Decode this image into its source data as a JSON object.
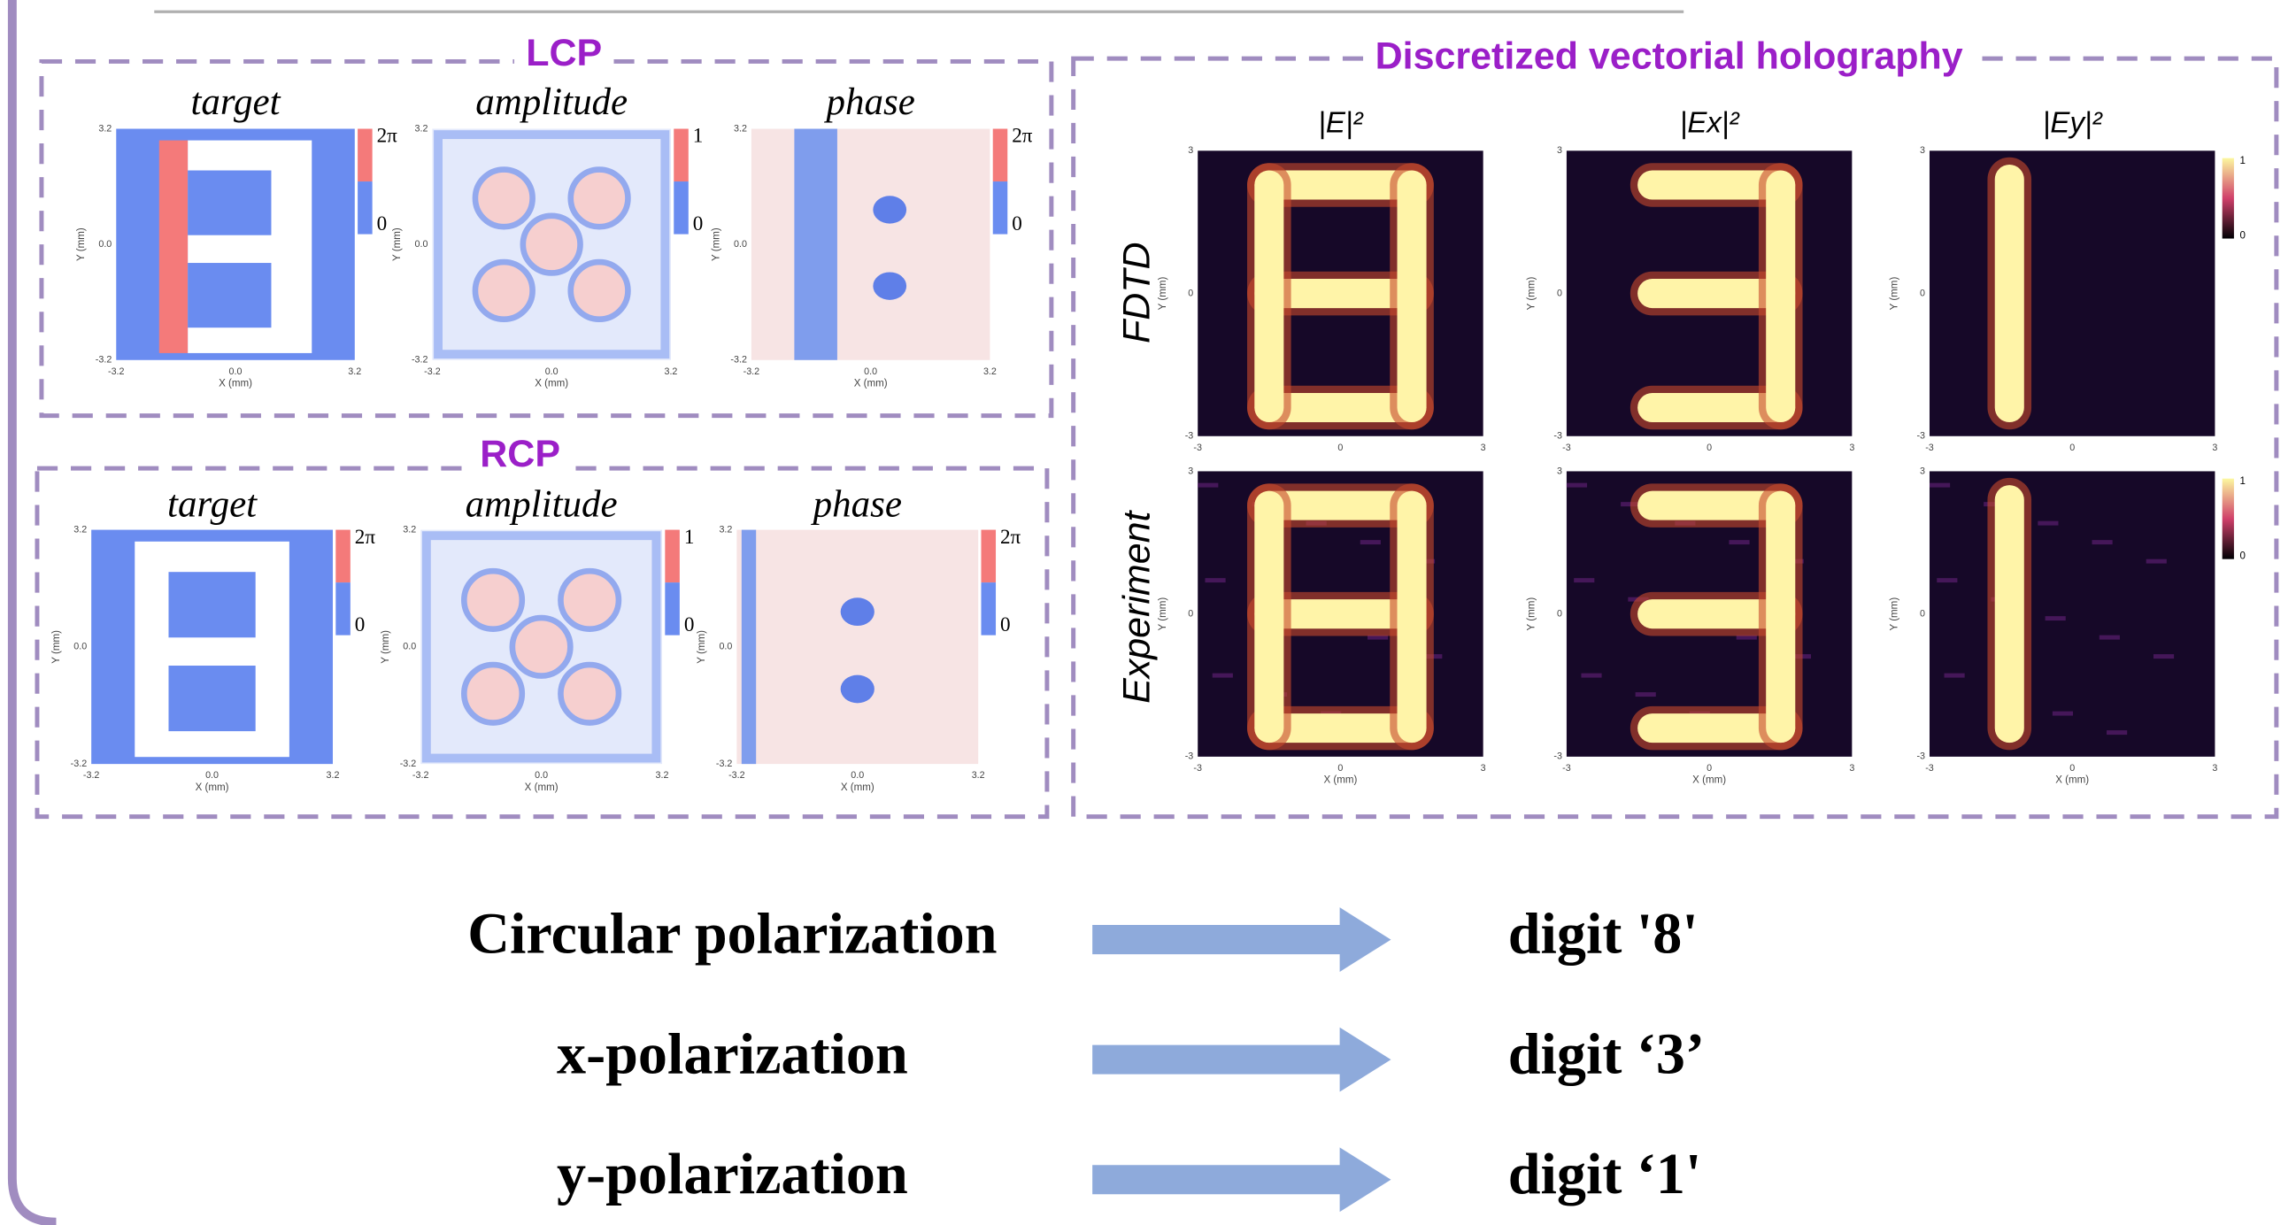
{
  "lcp": {
    "title": "LCP",
    "panels": [
      {
        "label": "target",
        "colorbar": [
          "2π",
          "0"
        ]
      },
      {
        "label": "amplitude",
        "colorbar": [
          "1",
          "0"
        ]
      },
      {
        "label": "phase",
        "colorbar": [
          "2π",
          "0"
        ]
      }
    ]
  },
  "rcp": {
    "title": "RCP",
    "panels": [
      {
        "label": "target",
        "colorbar": [
          "2π",
          "0"
        ]
      },
      {
        "label": "amplitude",
        "colorbar": [
          "1",
          "0"
        ]
      },
      {
        "label": "phase",
        "colorbar": [
          "2π",
          "0"
        ]
      }
    ]
  },
  "axes": {
    "x_ticks": [
      "-3.2",
      "0.0",
      "3.2"
    ],
    "y_ticks": [
      "3.2",
      "0.0",
      "-3.2"
    ],
    "x_label": "X (mm)",
    "y_label": "Y (mm)"
  },
  "holography": {
    "title": "Discretized vectorial holography",
    "columns": [
      "|E|²",
      "|Ex|²",
      "|Ey|²"
    ],
    "rows": [
      "FDTD",
      "Experiment"
    ],
    "x_ticks": [
      "-3",
      "0",
      "3"
    ],
    "y_ticks": [
      "3",
      "0",
      "-3"
    ],
    "x_label": "X (mm)",
    "y_label": "Y (mm)",
    "colorbar": [
      "1",
      "0"
    ]
  },
  "mapping": [
    {
      "input": "Circular polarization",
      "output": "digit '8'"
    },
    {
      "input": "x-polarization",
      "output": "digit ‘3’"
    },
    {
      "input": "y-polarization",
      "output": "digit ‘1'"
    }
  ]
}
